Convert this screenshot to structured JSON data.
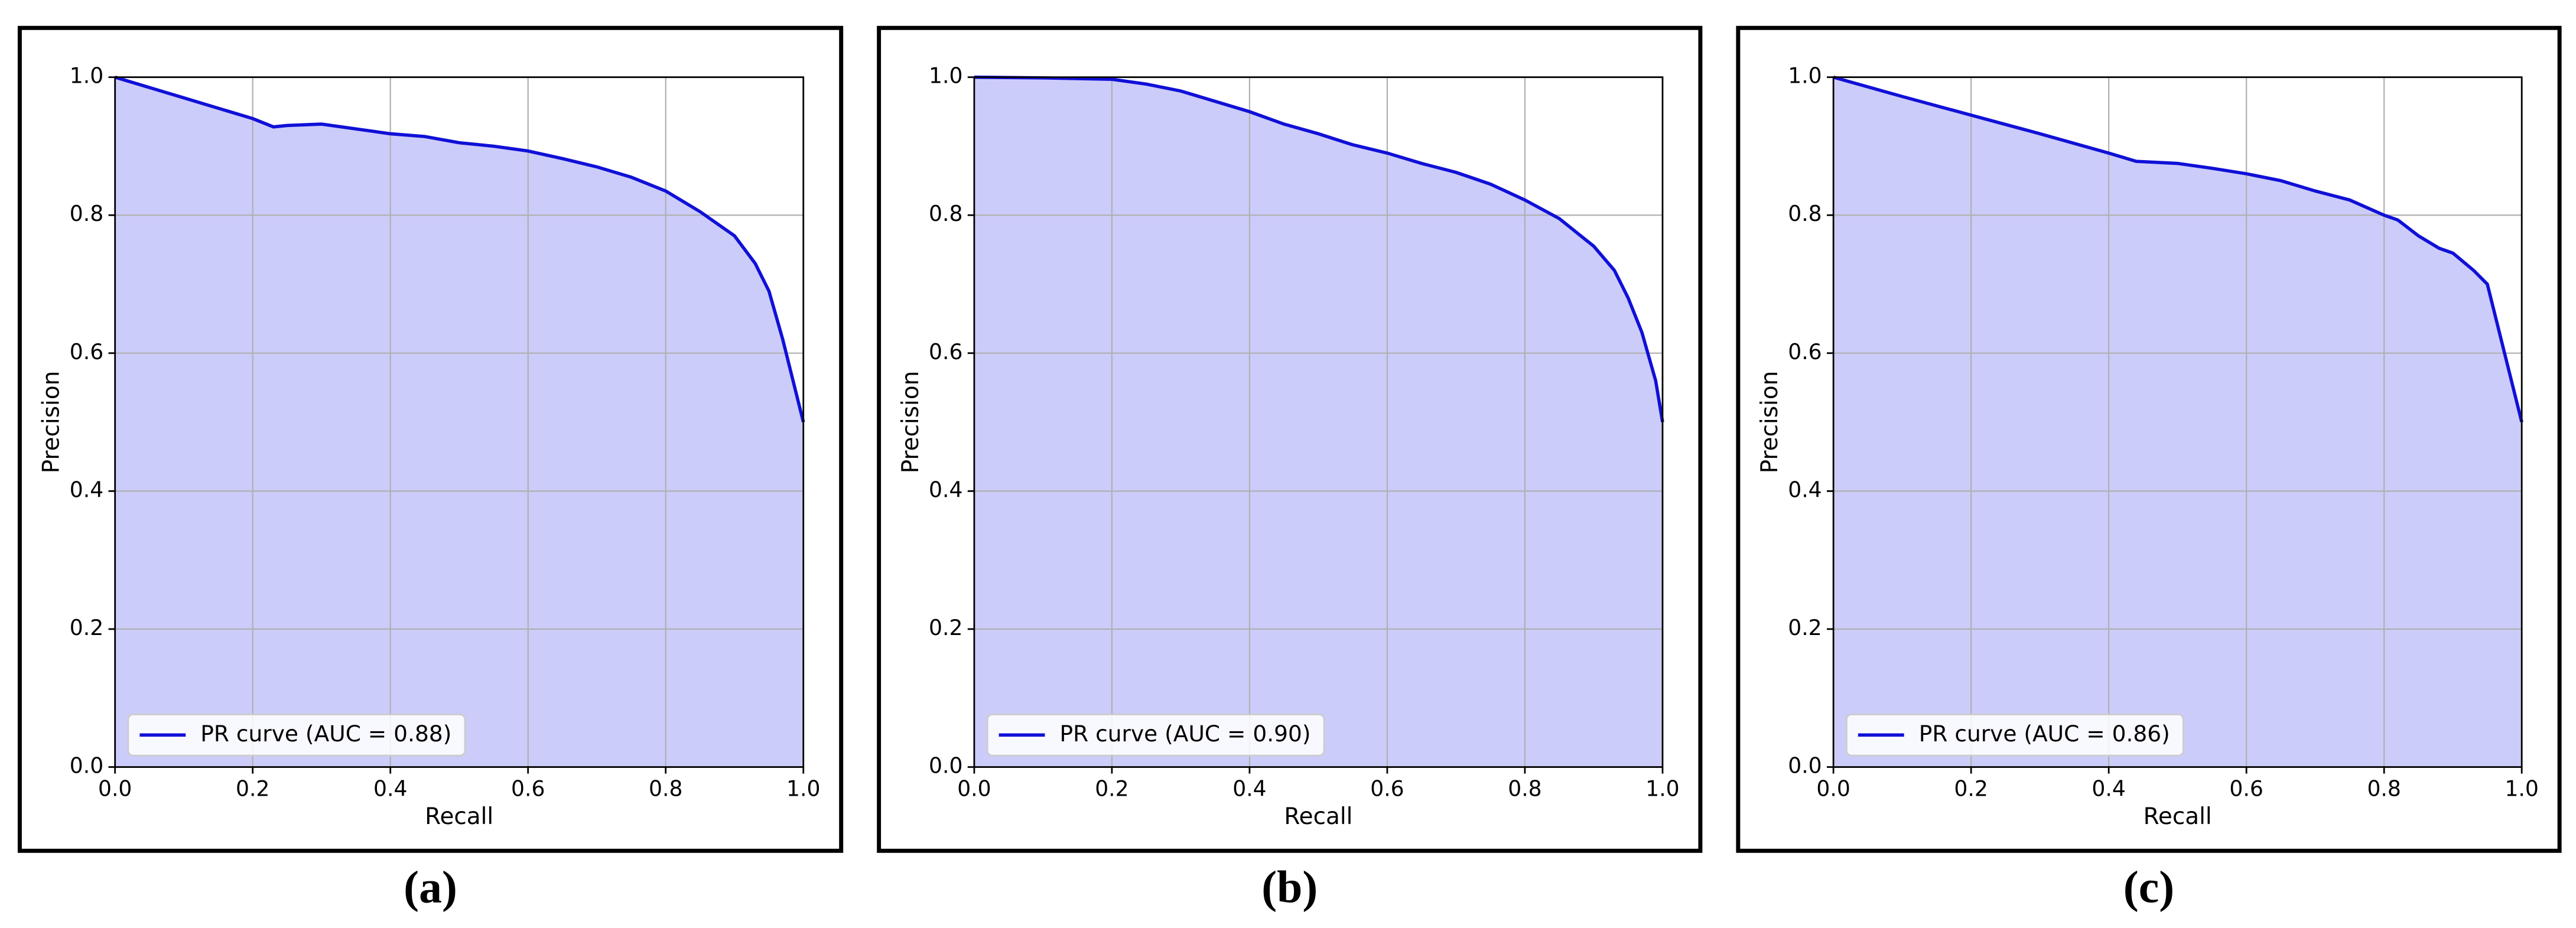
{
  "chart_data": [
    {
      "type": "area-line",
      "caption": "(a)",
      "xlabel": "Recall",
      "ylabel": "Precision",
      "xlim": [
        0,
        1
      ],
      "ylim": [
        0,
        1
      ],
      "xticks": [
        {
          "value": 0,
          "label": "0.0"
        },
        0.2,
        0.4,
        0.6,
        0.8,
        {
          "value": 1,
          "label": "1.0"
        }
      ],
      "yticks": [
        {
          "value": 0,
          "label": "0.0"
        },
        0.2,
        0.4,
        0.6,
        0.8,
        {
          "value": 1,
          "label": "1.0"
        }
      ],
      "grid": true,
      "legend": "lower left",
      "fill_color": "#ccccfa",
      "series": [
        {
          "name": "PR curve (AUC = 0.88)",
          "color": "#1010d8",
          "x": [
            0,
            0.05,
            0.1,
            0.15,
            0.2,
            0.23,
            0.25,
            0.3,
            0.35,
            0.4,
            0.45,
            0.5,
            0.55,
            0.6,
            0.65,
            0.7,
            0.75,
            0.8,
            0.85,
            0.9,
            0.93,
            0.95,
            0.97,
            0.98,
            0.99,
            1.0
          ],
          "values": [
            1,
            0.985,
            0.97,
            0.955,
            0.94,
            0.928,
            0.93,
            0.932,
            0.925,
            0.918,
            0.914,
            0.905,
            0.9,
            0.893,
            0.882,
            0.87,
            0.855,
            0.835,
            0.805,
            0.77,
            0.73,
            0.69,
            0.62,
            0.58,
            0.54,
            0.5
          ]
        }
      ]
    },
    {
      "type": "area-line",
      "caption": "(b)",
      "xlabel": "Recall",
      "ylabel": "Precision",
      "xlim": [
        0,
        1
      ],
      "ylim": [
        0,
        1
      ],
      "xticks": [
        {
          "value": 0,
          "label": "0.0"
        },
        0.2,
        0.4,
        0.6,
        0.8,
        {
          "value": 1,
          "label": "1.0"
        }
      ],
      "yticks": [
        {
          "value": 0,
          "label": "0.0"
        },
        0.2,
        0.4,
        0.6,
        0.8,
        {
          "value": 1,
          "label": "1.0"
        }
      ],
      "grid": true,
      "legend": "lower left",
      "fill_color": "#ccccfa",
      "series": [
        {
          "name": "PR curve (AUC = 0.90)",
          "color": "#1010d8",
          "x": [
            0,
            0.1,
            0.2,
            0.25,
            0.3,
            0.35,
            0.4,
            0.45,
            0.5,
            0.55,
            0.6,
            0.65,
            0.7,
            0.75,
            0.8,
            0.85,
            0.9,
            0.93,
            0.95,
            0.97,
            0.99,
            1.0
          ],
          "values": [
            1,
            0.999,
            0.997,
            0.99,
            0.98,
            0.965,
            0.95,
            0.932,
            0.918,
            0.902,
            0.89,
            0.875,
            0.862,
            0.845,
            0.822,
            0.795,
            0.755,
            0.72,
            0.68,
            0.63,
            0.56,
            0.5
          ]
        }
      ]
    },
    {
      "type": "area-line",
      "caption": "(c)",
      "xlabel": "Recall",
      "ylabel": "Precision",
      "xlim": [
        0,
        1
      ],
      "ylim": [
        0,
        1
      ],
      "xticks": [
        {
          "value": 0,
          "label": "0.0"
        },
        0.2,
        0.4,
        0.6,
        0.8,
        {
          "value": 1,
          "label": "1.0"
        }
      ],
      "yticks": [
        {
          "value": 0,
          "label": "0.0"
        },
        0.2,
        0.4,
        0.6,
        0.8,
        {
          "value": 1,
          "label": "1.0"
        }
      ],
      "grid": true,
      "legend": "lower left",
      "fill_color": "#ccccfa",
      "series": [
        {
          "name": "PR curve (AUC = 0.86)",
          "color": "#1010d8",
          "x": [
            0,
            0.1,
            0.2,
            0.3,
            0.4,
            0.44,
            0.5,
            0.55,
            0.6,
            0.65,
            0.7,
            0.75,
            0.8,
            0.82,
            0.85,
            0.88,
            0.9,
            0.93,
            0.95,
            0.97,
            1.0
          ],
          "values": [
            1,
            0.972,
            0.945,
            0.918,
            0.89,
            0.878,
            0.875,
            0.868,
            0.86,
            0.85,
            0.835,
            0.822,
            0.8,
            0.793,
            0.77,
            0.752,
            0.745,
            0.72,
            0.7,
            0.62,
            0.5
          ]
        }
      ]
    }
  ]
}
